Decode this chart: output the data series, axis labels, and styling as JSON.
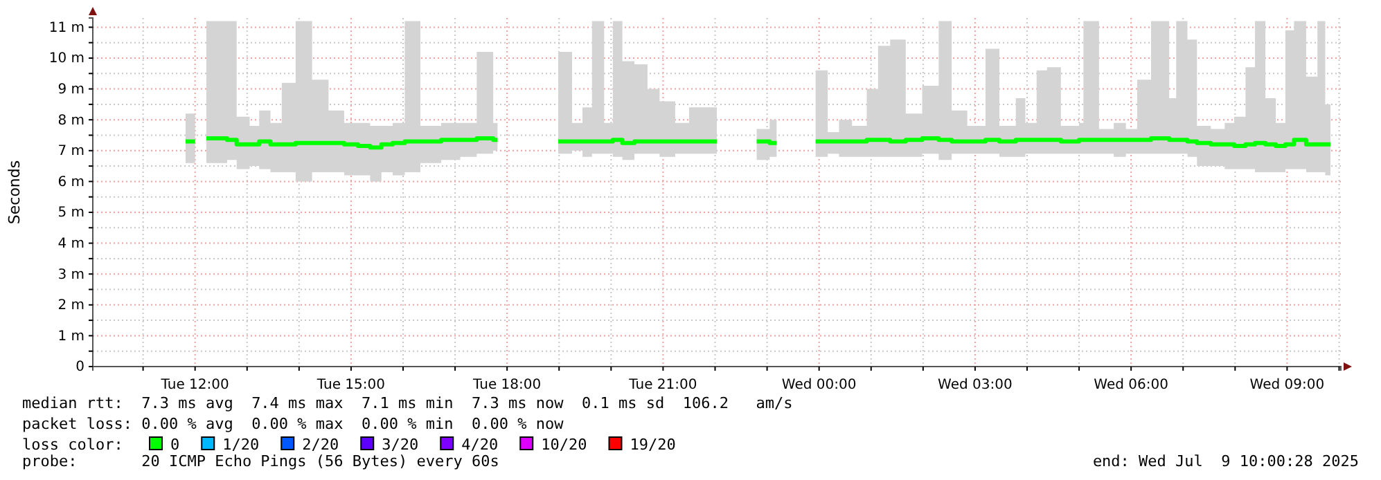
{
  "chart_data": {
    "type": "step",
    "ylabel": "Seconds",
    "legend_title": "loss color:",
    "legend": "bottom left",
    "grid": true,
    "line_style": "solid",
    "marker": "none",
    "annotations": [
      "median rtt:  7.3 ms avg  7.4 ms max  7.1 ms min  7.3 ms now  0.1 ms sd  106.2   am/s",
      "packet loss: 0.00 % avg  0.00 % max  0.00 % min  0.00 % now",
      "probe:       20 ICMP Echo Pings (56 Bytes) every 60s",
      "end: Wed Jul  9 10:00:28 2025"
    ],
    "xlim": [
      "2025-07-08T10:02",
      "2025-07-09T10:02"
    ],
    "xticks": [
      {
        "value": "2025-07-08T11:00",
        "label": null
      },
      {
        "value": "2025-07-08T12:00",
        "label": "Tue 12:00"
      },
      {
        "value": "2025-07-08T13:00",
        "label": null
      },
      {
        "value": "2025-07-08T14:00",
        "label": null
      },
      {
        "value": "2025-07-08T15:00",
        "label": "Tue 15:00"
      },
      {
        "value": "2025-07-08T16:00",
        "label": null
      },
      {
        "value": "2025-07-08T17:00",
        "label": null
      },
      {
        "value": "2025-07-08T18:00",
        "label": "Tue 18:00"
      },
      {
        "value": "2025-07-08T19:00",
        "label": null
      },
      {
        "value": "2025-07-08T20:00",
        "label": null
      },
      {
        "value": "2025-07-08T21:00",
        "label": "Tue 21:00"
      },
      {
        "value": "2025-07-08T22:00",
        "label": null
      },
      {
        "value": "2025-07-08T23:00",
        "label": null
      },
      {
        "value": "2025-07-09T00:00",
        "label": "Wed 00:00"
      },
      {
        "value": "2025-07-09T01:00",
        "label": null
      },
      {
        "value": "2025-07-09T02:00",
        "label": null
      },
      {
        "value": "2025-07-09T03:00",
        "label": "Wed 03:00"
      },
      {
        "value": "2025-07-09T04:00",
        "label": null
      },
      {
        "value": "2025-07-09T05:00",
        "label": null
      },
      {
        "value": "2025-07-09T06:00",
        "label": "Wed 06:00"
      },
      {
        "value": "2025-07-09T07:00",
        "label": null
      },
      {
        "value": "2025-07-09T08:00",
        "label": null
      },
      {
        "value": "2025-07-09T09:00",
        "label": "Wed 09:00"
      },
      {
        "value": "2025-07-09T10:00",
        "label": null
      }
    ],
    "ylim": [
      0,
      11.3
    ],
    "yticks": [
      0,
      {
        "value": 0.5,
        "label": null
      },
      {
        "value": 1,
        "label": "1 m"
      },
      {
        "value": 1.5,
        "label": null
      },
      {
        "value": 2,
        "label": "2 m"
      },
      {
        "value": 2.5,
        "label": null
      },
      {
        "value": 3,
        "label": "3 m"
      },
      {
        "value": 3.5,
        "label": null
      },
      {
        "value": 4,
        "label": "4 m"
      },
      {
        "value": 4.5,
        "label": null
      },
      {
        "value": 5,
        "label": "5 m"
      },
      {
        "value": 5.5,
        "label": null
      },
      {
        "value": 6,
        "label": "6 m"
      },
      {
        "value": 6.5,
        "label": null
      },
      {
        "value": 7,
        "label": "7 m"
      },
      {
        "value": 7.5,
        "label": null
      },
      {
        "value": 8,
        "label": "8 m"
      },
      {
        "value": 8.5,
        "label": null
      },
      {
        "value": 9,
        "label": "9 m"
      },
      {
        "value": 9.5,
        "label": null
      },
      {
        "value": 10,
        "label": "10 m"
      },
      {
        "value": 10.5,
        "label": null
      },
      {
        "value": 11,
        "label": "11 m"
      }
    ],
    "series": [
      {
        "name": "0",
        "color": "#00ff00",
        "x": [
          "2025-07-08T11:49",
          "2025-07-08T12:00",
          "2025-07-08T12:06",
          "2025-07-08T12:13",
          "2025-07-08T12:37",
          "2025-07-08T12:48",
          "2025-07-08T13:03",
          "2025-07-08T13:14",
          "2025-07-08T13:27",
          "2025-07-08T13:40",
          "2025-07-08T13:56",
          "2025-07-08T14:15",
          "2025-07-08T14:34",
          "2025-07-08T14:52",
          "2025-07-08T15:08",
          "2025-07-08T15:22",
          "2025-07-08T15:35",
          "2025-07-08T15:48",
          "2025-07-08T16:02",
          "2025-07-08T16:20",
          "2025-07-08T16:44",
          "2025-07-08T17:06",
          "2025-07-08T17:25",
          "2025-07-08T17:44",
          "2025-07-08T17:49",
          "2025-07-08T18:20",
          "2025-07-08T18:59",
          "2025-07-08T19:15",
          "2025-07-08T19:27",
          "2025-07-08T19:38",
          "2025-07-08T19:52",
          "2025-07-08T20:02",
          "2025-07-08T20:13",
          "2025-07-08T20:27",
          "2025-07-08T20:42",
          "2025-07-08T20:56",
          "2025-07-08T21:14",
          "2025-07-08T21:30",
          "2025-07-08T21:47",
          "2025-07-08T22:02",
          "2025-07-08T22:20",
          "2025-07-08T22:48",
          "2025-07-08T23:03",
          "2025-07-08T23:11",
          "2025-07-08T23:30",
          "2025-07-08T23:56",
          "2025-07-09T00:10",
          "2025-07-09T00:23",
          "2025-07-09T00:38",
          "2025-07-09T00:55",
          "2025-07-09T01:08",
          "2025-07-09T01:22",
          "2025-07-09T01:40",
          "2025-07-09T01:59",
          "2025-07-09T02:18",
          "2025-07-09T02:33",
          "2025-07-09T02:51",
          "2025-07-09T03:12",
          "2025-07-09T03:28",
          "2025-07-09T03:47",
          "2025-07-09T03:58",
          "2025-07-09T04:11",
          "2025-07-09T04:23",
          "2025-07-09T04:39",
          "2025-07-09T05:00",
          "2025-07-09T05:05",
          "2025-07-09T05:23",
          "2025-07-09T05:40",
          "2025-07-09T05:54",
          "2025-07-09T06:07",
          "2025-07-09T06:23",
          "2025-07-09T06:44",
          "2025-07-09T06:52",
          "2025-07-09T07:05",
          "2025-07-09T07:16",
          "2025-07-09T07:32",
          "2025-07-09T07:48",
          "2025-07-09T07:59",
          "2025-07-09T08:12",
          "2025-07-09T08:23",
          "2025-07-09T08:35",
          "2025-07-09T08:47",
          "2025-07-09T08:58",
          "2025-07-09T09:08",
          "2025-07-09T09:22",
          "2025-07-09T09:35",
          "2025-07-09T09:44",
          "2025-07-09T09:50"
        ],
        "values": [
          7.3,
          7.3,
          null,
          7.4,
          7.35,
          7.2,
          7.2,
          7.3,
          7.2,
          7.2,
          7.25,
          7.25,
          7.25,
          7.2,
          7.15,
          7.1,
          7.2,
          7.25,
          7.3,
          7.3,
          7.35,
          7.35,
          7.4,
          7.35,
          7.35,
          null,
          7.3,
          7.3,
          7.3,
          7.3,
          7.3,
          7.35,
          7.25,
          7.3,
          7.3,
          7.3,
          7.3,
          7.3,
          7.3,
          7.3,
          null,
          7.3,
          7.25,
          7.25,
          null,
          7.3,
          7.3,
          7.3,
          7.3,
          7.35,
          7.35,
          7.3,
          7.35,
          7.4,
          7.35,
          7.3,
          7.3,
          7.35,
          7.3,
          7.35,
          7.35,
          7.35,
          7.35,
          7.3,
          7.35,
          7.35,
          7.35,
          7.35,
          7.35,
          7.35,
          7.4,
          7.35,
          7.35,
          7.3,
          7.25,
          7.2,
          7.2,
          7.15,
          7.2,
          7.25,
          7.2,
          7.15,
          7.2,
          7.35,
          7.2,
          7.2,
          7.2,
          7.2
        ],
        "lower": [
          6.6,
          6.6,
          null,
          6.6,
          6.7,
          6.4,
          6.5,
          6.4,
          6.3,
          6.3,
          6.0,
          6.3,
          6.3,
          6.2,
          6.2,
          6.0,
          6.3,
          6.2,
          6.3,
          6.6,
          6.7,
          6.8,
          6.9,
          7.0,
          7.0,
          null,
          6.9,
          7.0,
          6.8,
          6.9,
          6.9,
          6.8,
          6.7,
          6.9,
          6.9,
          6.8,
          6.9,
          6.9,
          6.9,
          6.9,
          null,
          6.7,
          6.8,
          6.8,
          null,
          6.8,
          6.9,
          6.8,
          6.8,
          6.8,
          6.8,
          6.8,
          6.8,
          6.9,
          6.7,
          6.9,
          6.9,
          6.9,
          6.8,
          6.8,
          6.9,
          6.9,
          6.9,
          6.9,
          6.9,
          6.9,
          6.9,
          6.8,
          6.9,
          6.9,
          6.9,
          6.9,
          6.9,
          6.8,
          6.5,
          6.5,
          6.4,
          6.4,
          6.4,
          6.3,
          6.3,
          6.3,
          6.4,
          6.4,
          6.3,
          6.3,
          6.2,
          6.2
        ],
        "upper": [
          8.2,
          8.2,
          null,
          11.2,
          11.2,
          8.1,
          7.8,
          8.3,
          7.9,
          9.2,
          11.2,
          9.3,
          8.3,
          7.9,
          7.9,
          7.8,
          7.8,
          7.9,
          11.2,
          7.8,
          7.9,
          7.9,
          10.2,
          7.9,
          7.9,
          null,
          10.2,
          7.9,
          8.4,
          11.2,
          7.9,
          11.2,
          9.9,
          9.8,
          9.0,
          8.6,
          7.9,
          8.4,
          8.4,
          8.4,
          null,
          7.7,
          8.0,
          8.0,
          null,
          9.6,
          7.6,
          8.0,
          7.8,
          9.0,
          10.4,
          10.6,
          8.2,
          9.1,
          11.2,
          8.3,
          7.8,
          10.3,
          7.8,
          8.7,
          7.9,
          9.6,
          9.7,
          7.8,
          7.9,
          11.2,
          7.7,
          7.9,
          7.7,
          9.3,
          11.2,
          8.7,
          11.2,
          10.6,
          7.8,
          7.7,
          7.9,
          8.1,
          9.7,
          11.2,
          8.7,
          7.9,
          10.9,
          11.2,
          9.4,
          11.2,
          8.5,
          8.5
        ]
      },
      {
        "name": "1/20",
        "color": "#00b8ff"
      },
      {
        "name": "2/20",
        "color": "#0059ff"
      },
      {
        "name": "3/20",
        "color": "#5e00ff"
      },
      {
        "name": "4/20",
        "color": "#7e00ff"
      },
      {
        "name": "10/20",
        "color": "#dd00ff"
      },
      {
        "name": "19/20",
        "color": "#ff0000"
      }
    ]
  }
}
